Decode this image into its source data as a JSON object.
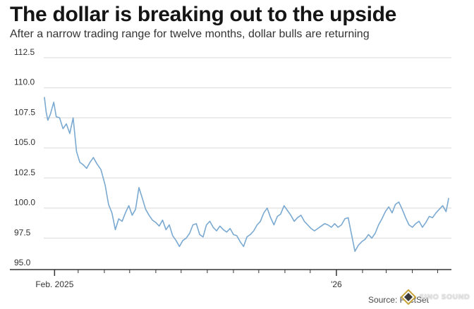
{
  "header": {
    "title": "The dollar is breaking out to the upside",
    "subtitle": "After a narrow trading range for twelve months, dollar bulls are returning"
  },
  "footer": {
    "source": "Source: FactSet"
  },
  "watermark": {
    "brand": "SINO SOUND"
  },
  "colors": {
    "line": "#7aa9d1",
    "grid": "#d9d9d9",
    "axis": "#333333",
    "text": "#151515"
  },
  "chart_data": {
    "type": "line",
    "title": "The dollar is breaking out to the upside",
    "subtitle": "After a narrow trading range for twelve months, dollar bulls are returning",
    "xlabel": "",
    "ylabel": "",
    "ylim": [
      95.0,
      112.5
    ],
    "yticks": [
      95.0,
      97.5,
      100.0,
      102.5,
      105.0,
      107.5,
      110.0,
      112.5
    ],
    "ytick_labels": [
      "95.0",
      "97.5",
      "100.0",
      "102.5",
      "105.0",
      "107.5",
      "110.0",
      "112.5"
    ],
    "xlim": [
      "2025-01-20",
      "2026-05-14"
    ],
    "xtick_labels": [
      {
        "date": "2025-02-01",
        "label": "Feb. 2025"
      },
      {
        "date": "2026-01-01",
        "label": "'26"
      }
    ],
    "month_ticks": [
      "2025-03-01",
      "2025-04-01",
      "2025-05-01",
      "2025-06-01",
      "2025-07-01",
      "2025-08-01",
      "2025-09-01",
      "2025-10-01",
      "2025-11-01",
      "2025-12-01",
      "2026-02-01",
      "2026-03-01",
      "2026-04-01",
      "2026-05-01"
    ],
    "grid": true,
    "series": [
      {
        "x": [
          "2025-01-20",
          "2025-01-22",
          "2025-01-24",
          "2025-01-27",
          "2025-01-31",
          "2025-02-03",
          "2025-02-07",
          "2025-02-11",
          "2025-02-15",
          "2025-02-19",
          "2025-02-23",
          "2025-02-27",
          "2025-03-03",
          "2025-03-07",
          "2025-03-11",
          "2025-03-15",
          "2025-03-19",
          "2025-03-23",
          "2025-03-28",
          "2025-04-02",
          "2025-04-06",
          "2025-04-10",
          "2025-04-14",
          "2025-04-18",
          "2025-04-22",
          "2025-04-26",
          "2025-04-30",
          "2025-05-04",
          "2025-05-08",
          "2025-05-12",
          "2025-05-16",
          "2025-05-20",
          "2025-05-24",
          "2025-05-28",
          "2025-06-01",
          "2025-06-05",
          "2025-06-09",
          "2025-06-13",
          "2025-06-17",
          "2025-06-21",
          "2025-06-25",
          "2025-06-29",
          "2025-07-03",
          "2025-07-07",
          "2025-07-11",
          "2025-07-15",
          "2025-07-19",
          "2025-07-23",
          "2025-07-27",
          "2025-07-31",
          "2025-08-04",
          "2025-08-08",
          "2025-08-12",
          "2025-08-16",
          "2025-08-20",
          "2025-08-24",
          "2025-08-28",
          "2025-09-01",
          "2025-09-05",
          "2025-09-09",
          "2025-09-13",
          "2025-09-17",
          "2025-09-21",
          "2025-09-25",
          "2025-09-29",
          "2025-10-03",
          "2025-10-07",
          "2025-10-11",
          "2025-10-15",
          "2025-10-19",
          "2025-10-23",
          "2025-10-27",
          "2025-10-31",
          "2025-11-04",
          "2025-11-08",
          "2025-11-12",
          "2025-11-16",
          "2025-11-20",
          "2025-11-24",
          "2025-11-28",
          "2025-12-02",
          "2025-12-06",
          "2025-12-10",
          "2025-12-14",
          "2025-12-18",
          "2025-12-22",
          "2025-12-26",
          "2025-12-30",
          "2026-01-03",
          "2026-01-07",
          "2026-01-11",
          "2026-01-15",
          "2026-01-19",
          "2026-01-23",
          "2026-01-27",
          "2026-01-31",
          "2026-02-04",
          "2026-02-08",
          "2026-02-12",
          "2026-02-16",
          "2026-02-20",
          "2026-02-24",
          "2026-02-28",
          "2026-03-04",
          "2026-03-08",
          "2026-03-12",
          "2026-03-16",
          "2026-03-20",
          "2026-03-24",
          "2026-03-28",
          "2026-04-01",
          "2026-04-05",
          "2026-04-09",
          "2026-04-13",
          "2026-04-17",
          "2026-04-21",
          "2026-04-25",
          "2026-04-29",
          "2026-05-03",
          "2026-05-07",
          "2026-05-11",
          "2026-05-14"
        ],
        "values": [
          109.2,
          108.0,
          107.3,
          107.8,
          108.8,
          107.6,
          107.5,
          106.6,
          107.0,
          106.2,
          107.5,
          104.7,
          103.8,
          103.6,
          103.3,
          103.8,
          104.2,
          103.7,
          103.2,
          101.9,
          100.3,
          99.6,
          98.2,
          99.1,
          98.9,
          99.6,
          100.2,
          99.4,
          99.9,
          101.7,
          100.8,
          99.9,
          99.4,
          99.0,
          98.8,
          98.5,
          99.0,
          98.2,
          98.6,
          97.7,
          97.3,
          96.8,
          97.3,
          97.5,
          97.9,
          98.6,
          98.7,
          97.8,
          97.6,
          98.6,
          98.9,
          98.4,
          98.1,
          98.5,
          98.2,
          98.0,
          98.3,
          97.8,
          97.7,
          97.2,
          96.8,
          97.6,
          97.8,
          98.1,
          98.6,
          98.9,
          99.6,
          100.0,
          99.2,
          98.6,
          99.3,
          99.5,
          100.2,
          99.8,
          99.4,
          98.9,
          99.2,
          99.4,
          98.9,
          98.6,
          98.3,
          98.1,
          98.3,
          98.5,
          98.7,
          98.6,
          98.4,
          98.7,
          98.4,
          98.6,
          99.1,
          99.2,
          97.8,
          96.4,
          96.9,
          97.2,
          97.4,
          97.8,
          97.5,
          97.9,
          98.6,
          99.1,
          99.7,
          100.1,
          99.6,
          100.3,
          100.5,
          99.9,
          99.2,
          98.6,
          98.4,
          98.7,
          98.9,
          98.4,
          98.8,
          99.3,
          99.2,
          99.6,
          99.9,
          100.2,
          99.7,
          100.8
        ]
      }
    ]
  }
}
